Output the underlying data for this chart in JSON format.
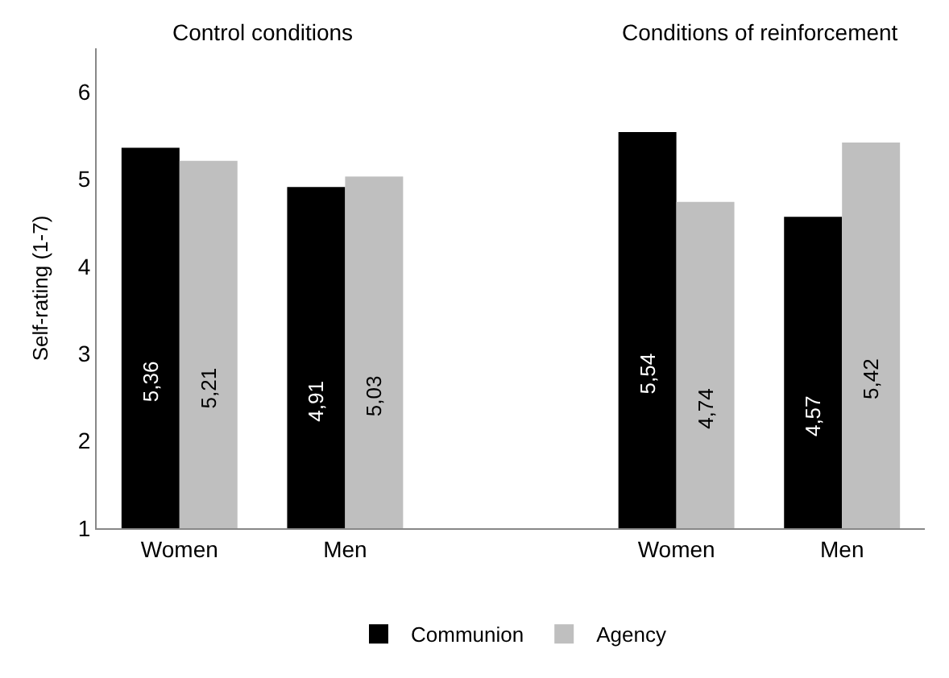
{
  "chart_data": {
    "type": "bar",
    "ylabel": "Self-rating (1-7)",
    "categories": [
      "Women",
      "Men",
      null,
      "Women",
      "Men"
    ],
    "series": [
      {
        "name": "Communion",
        "color": "#000000",
        "values": [
          5.36,
          4.91,
          null,
          5.54,
          4.57
        ],
        "value_labels": [
          "5,36",
          "4,91",
          null,
          "5,54",
          "4,57"
        ]
      },
      {
        "name": "Agency",
        "color": "#bfbfbf",
        "values": [
          5.21,
          5.03,
          null,
          4.74,
          5.42
        ],
        "value_labels": [
          "5,21",
          "5,03",
          null,
          "4,74",
          "5,42"
        ]
      }
    ],
    "annotations": [
      "Control conditions",
      "Conditions of reinforcement"
    ],
    "ylim": [
      1,
      6.5
    ],
    "yticks": [
      1,
      2,
      3,
      4,
      5,
      6
    ],
    "legend": "bottom"
  }
}
